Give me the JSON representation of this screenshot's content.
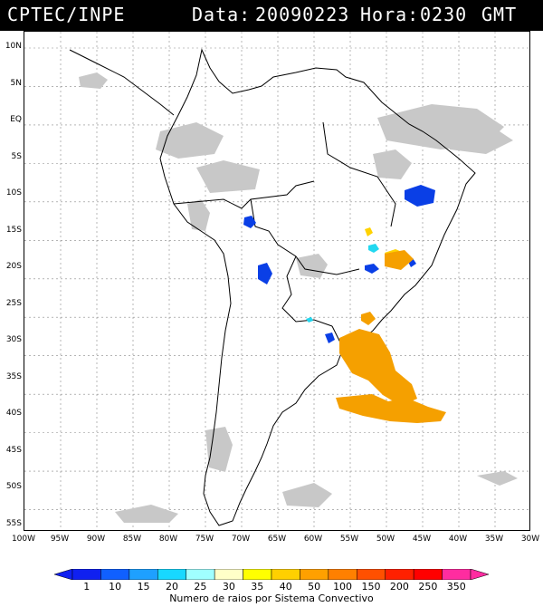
{
  "header": {
    "source": "CPTEC/INPE",
    "date_label": "Data:",
    "date_value": "20090223",
    "time_label": "Hora:",
    "time_value": "0230",
    "tz": "GMT"
  },
  "map": {
    "lat_labels": [
      "10N",
      "5N",
      "EQ",
      "5S",
      "10S",
      "15S",
      "20S",
      "25S",
      "30S",
      "35S",
      "40S",
      "45S",
      "50S",
      "55S"
    ],
    "lon_labels": [
      "100W",
      "95W",
      "90W",
      "85W",
      "80W",
      "75W",
      "70W",
      "65W",
      "60W",
      "55W",
      "50W",
      "45W",
      "40W",
      "35W",
      "30W"
    ],
    "lat_range": [
      10,
      -55
    ],
    "lon_range": [
      -100,
      -30
    ],
    "colors": {
      "cloud": "#c8c8c8",
      "blue": "#0a3fe6",
      "cyan": "#22d8f0",
      "yellow": "#ffd200",
      "orange": "#f5a000"
    }
  },
  "legend": {
    "labels": [
      "1",
      "10",
      "15",
      "20",
      "25",
      "30",
      "35",
      "40",
      "50",
      "100",
      "150",
      "200",
      "250",
      "350"
    ],
    "colors": [
      "#1020f0",
      "#1060ff",
      "#1ea0ff",
      "#18d8ff",
      "#a0ffff",
      "#ffffc8",
      "#ffff00",
      "#ffd000",
      "#ffa000",
      "#ff8000",
      "#ff5000",
      "#ff2000",
      "#ff0000",
      "#ff2ca0"
    ],
    "title": "Numero de raios por Sistema Convectivo"
  }
}
